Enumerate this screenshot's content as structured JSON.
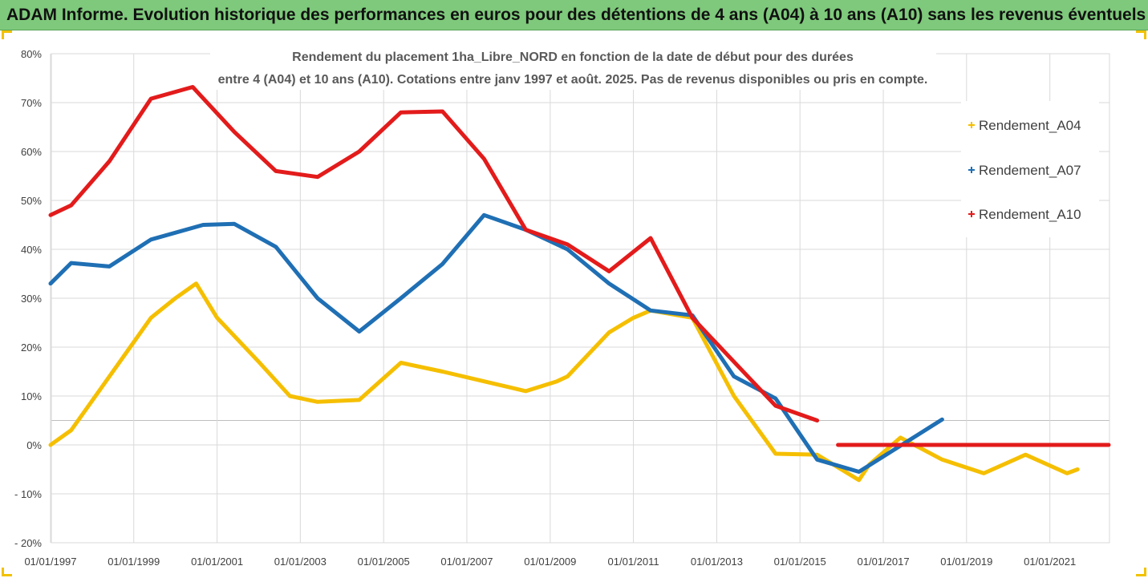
{
  "header": {
    "title": "ADAM Informe. Evolution historique des performances en euros pour des détentions de 4 ans (A04) à 10 ans (A10) sans les revenus éventuels"
  },
  "chart_data": {
    "type": "line",
    "title_lines": [
      "Rendement du placement 1ha_Libre_NORD en fonction de la date de début pour des durées",
      "entre 4 (A04) et 10 ans (A10). Cotations entre janv 1997 et août. 2025. Pas de revenus disponibles ou pris en compte."
    ],
    "xlabel": "",
    "ylabel": "",
    "x_range": [
      "1997-01-01",
      "2022-06-01"
    ],
    "ylim": [
      -20,
      80
    ],
    "y_ticks": [
      -20,
      -10,
      0,
      10,
      20,
      30,
      40,
      50,
      60,
      70,
      80
    ],
    "y_tick_labels": [
      "- 20%",
      "- 10%",
      "0%",
      "10%",
      "20%",
      "30%",
      "40%",
      "50%",
      "60%",
      "70%",
      "80%"
    ],
    "x_ticks": [
      "1997-01-01",
      "1999-01-01",
      "2001-01-01",
      "2003-01-01",
      "2005-01-01",
      "2007-01-01",
      "2009-01-01",
      "2011-01-01",
      "2013-01-01",
      "2015-01-01",
      "2017-01-01",
      "2019-01-01",
      "2021-01-01"
    ],
    "x_tick_labels": [
      "01/01/1997",
      "01/01/1999",
      "01/01/2001",
      "01/01/2003",
      "01/01/2005",
      "01/01/2007",
      "01/01/2009",
      "01/01/2011",
      "01/01/2013",
      "01/01/2015",
      "01/01/2017",
      "01/01/2019",
      "01/01/2021"
    ],
    "grid": true,
    "legend_position": "right",
    "series": [
      {
        "name": "Rendement_A04",
        "color": "#f5bf00",
        "points": [
          [
            "1997-01-01",
            0
          ],
          [
            "1997-07-01",
            3
          ],
          [
            "1998-04-01",
            12
          ],
          [
            "1998-12-01",
            20
          ],
          [
            "1999-06-01",
            26
          ],
          [
            "2000-01-01",
            30
          ],
          [
            "2000-07-01",
            33
          ],
          [
            "2001-01-01",
            26
          ],
          [
            "2002-01-01",
            17
          ],
          [
            "2002-10-01",
            10
          ],
          [
            "2003-06-01",
            8.8
          ],
          [
            "2004-06-01",
            9.2
          ],
          [
            "2005-06-01",
            16.8
          ],
          [
            "2006-06-01",
            15
          ],
          [
            "2007-06-01",
            13
          ],
          [
            "2008-06-01",
            11
          ],
          [
            "2009-03-01",
            13
          ],
          [
            "2009-06-01",
            14
          ],
          [
            "2010-06-01",
            23
          ],
          [
            "2011-01-01",
            26
          ],
          [
            "2011-06-01",
            27.5
          ],
          [
            "2012-06-01",
            26
          ],
          [
            "2013-06-01",
            10
          ],
          [
            "2014-06-01",
            -1.8
          ],
          [
            "2015-06-01",
            -2
          ],
          [
            "2016-06-01",
            -7.2
          ],
          [
            "2016-09-01",
            -4
          ],
          [
            "2017-06-01",
            1.5
          ],
          [
            "2018-06-01",
            -3
          ],
          [
            "2019-06-01",
            -5.8
          ],
          [
            "2020-06-01",
            -2
          ],
          [
            "2021-06-01",
            -5.8
          ],
          [
            "2021-09-01",
            -5
          ]
        ]
      },
      {
        "name": "Rendement_A07",
        "color": "#1f6fb4",
        "points": [
          [
            "1997-01-01",
            33
          ],
          [
            "1997-07-01",
            37.2
          ],
          [
            "1998-06-01",
            36.5
          ],
          [
            "1999-06-01",
            42
          ],
          [
            "2000-09-01",
            45
          ],
          [
            "2001-06-01",
            45.2
          ],
          [
            "2002-06-01",
            40.5
          ],
          [
            "2003-06-01",
            30
          ],
          [
            "2004-06-01",
            23.2
          ],
          [
            "2005-06-01",
            30
          ],
          [
            "2006-06-01",
            37
          ],
          [
            "2007-06-01",
            47
          ],
          [
            "2008-06-01",
            44
          ],
          [
            "2009-06-01",
            40
          ],
          [
            "2010-06-01",
            33
          ],
          [
            "2011-06-01",
            27.5
          ],
          [
            "2012-06-01",
            26.5
          ],
          [
            "2013-06-01",
            14
          ],
          [
            "2014-06-01",
            9.5
          ],
          [
            "2015-06-01",
            -3
          ],
          [
            "2016-06-01",
            -5.5
          ],
          [
            "2018-06-01",
            5.2
          ]
        ]
      },
      {
        "name": "Rendement_A10",
        "color": "#e31b1b",
        "points": [
          [
            "1997-01-01",
            47
          ],
          [
            "1997-07-01",
            49
          ],
          [
            "1998-06-01",
            58
          ],
          [
            "1999-06-01",
            70.8
          ],
          [
            "2000-06-01",
            73.2
          ],
          [
            "2001-06-01",
            64
          ],
          [
            "2002-06-01",
            56
          ],
          [
            "2003-06-01",
            54.8
          ],
          [
            "2004-06-01",
            60
          ],
          [
            "2005-06-01",
            68
          ],
          [
            "2006-06-01",
            68.2
          ],
          [
            "2007-06-01",
            58.5
          ],
          [
            "2008-06-01",
            44
          ],
          [
            "2009-06-01",
            41
          ],
          [
            "2010-06-01",
            35.5
          ],
          [
            "2011-06-01",
            42.3
          ],
          [
            "2012-06-01",
            26
          ],
          [
            "2013-06-01",
            17
          ],
          [
            "2014-06-01",
            8
          ],
          [
            "2015-06-01",
            5
          ]
        ],
        "points_extra": [
          [
            "2015-12-01",
            0
          ],
          [
            "2022-06-01",
            0
          ]
        ]
      }
    ]
  }
}
